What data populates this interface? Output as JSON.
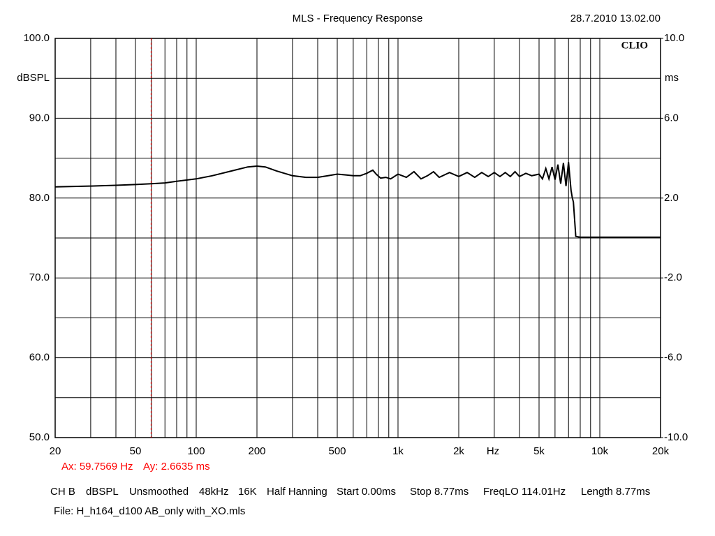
{
  "chart_data": {
    "type": "line",
    "title": "MLS - Frequency Response",
    "date": "28.7.2010 13.02.00",
    "brand": "CLIO",
    "ylabel": "dBSPL",
    "y2label": "ms",
    "xlabel": "Hz",
    "log_x": true,
    "color": "#000000",
    "xlim": [
      20,
      20000
    ],
    "xticks": [
      20,
      50,
      100,
      200,
      500,
      {
        "value": 1000,
        "label": "1k"
      },
      {
        "value": 2000,
        "label": "2k"
      },
      {
        "value": 5000,
        "label": "5k"
      },
      {
        "value": 10000,
        "label": "10k"
      },
      {
        "value": 20000,
        "label": "20k"
      }
    ],
    "xgrid": [
      30,
      40,
      60,
      70,
      80,
      90,
      300,
      400,
      600,
      700,
      800,
      900,
      3000,
      4000,
      6000,
      7000,
      8000,
      9000
    ],
    "ylim": [
      50,
      100
    ],
    "yticks": [
      {
        "value": 100,
        "label": "100.0"
      },
      {
        "value": 90,
        "label": "90.0"
      },
      {
        "value": 80,
        "label": "80.0"
      },
      {
        "value": 70,
        "label": "70.0"
      },
      {
        "value": 60,
        "label": "60.0"
      },
      {
        "value": 50,
        "label": "50.0"
      }
    ],
    "ygrid": [
      95,
      85,
      75,
      65,
      55
    ],
    "y2lim": [
      -10,
      10
    ],
    "y2ticks": [
      {
        "value": 10,
        "label": "10.0"
      },
      {
        "value": 6,
        "label": "6.0"
      },
      {
        "value": 2,
        "label": "2.0"
      },
      {
        "value": -2,
        "label": "-2.0"
      },
      {
        "value": -6,
        "label": "-6.0"
      },
      {
        "value": -10,
        "label": "-10.0"
      }
    ],
    "x": [
      20,
      30,
      40,
      50,
      60,
      70,
      80,
      100,
      120,
      150,
      180,
      200,
      220,
      250,
      300,
      350,
      400,
      450,
      500,
      550,
      600,
      650,
      700,
      750,
      780,
      820,
      870,
      920,
      1000,
      1100,
      1200,
      1300,
      1400,
      1500,
      1600,
      1800,
      2000,
      2200,
      2400,
      2600,
      2800,
      3000,
      3200,
      3400,
      3600,
      3800,
      4000,
      4300,
      4600,
      5000,
      5200,
      5400,
      5600,
      5800,
      6000,
      6200,
      6400,
      6600,
      6800,
      7000,
      7200,
      7300,
      7400,
      7600,
      8000,
      10000,
      15000,
      20000
    ],
    "values": [
      81.4,
      81.5,
      81.6,
      81.7,
      81.8,
      81.9,
      82.1,
      82.4,
      82.8,
      83.4,
      83.9,
      84.0,
      83.9,
      83.4,
      82.8,
      82.6,
      82.6,
      82.8,
      83.0,
      82.9,
      82.8,
      82.8,
      83.1,
      83.5,
      83.0,
      82.5,
      82.6,
      82.4,
      83.0,
      82.6,
      83.3,
      82.4,
      82.8,
      83.3,
      82.6,
      83.2,
      82.7,
      83.2,
      82.6,
      83.2,
      82.7,
      83.2,
      82.7,
      83.2,
      82.7,
      83.3,
      82.7,
      83.1,
      82.8,
      83.0,
      82.4,
      83.7,
      82.4,
      83.9,
      82.3,
      84.2,
      81.8,
      84.4,
      81.5,
      84.5,
      81.0,
      80.1,
      79.5,
      75.2,
      75.1,
      75.1,
      75.1,
      75.1
    ],
    "cursor": {
      "x": 59.7569,
      "color": "#ff0000",
      "labels": [
        "Ax: 59.7569 Hz",
        "Ay: 2.6635 ms"
      ]
    },
    "info": [
      "CH B",
      "dBSPL",
      "Unsmoothed",
      "48kHz",
      "16K",
      "Half Hanning",
      "Start 0.00ms",
      "Stop 8.77ms",
      "FreqLO 114.01Hz",
      "Length 8.77ms"
    ],
    "file": "File: H_h164_d100 AB_only with_XO.mls"
  }
}
